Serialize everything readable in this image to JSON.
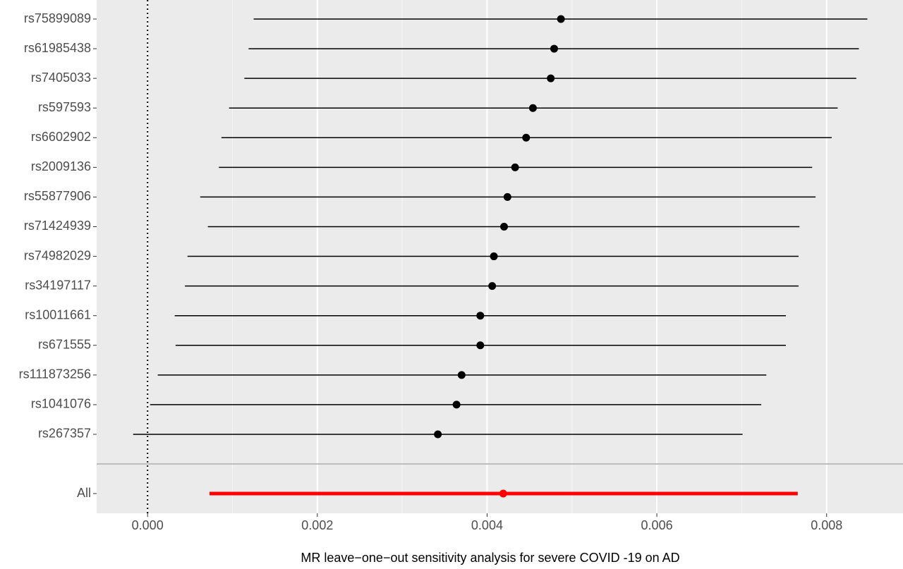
{
  "chart_data": {
    "type": "forest",
    "x_label": "MR leave−one−out sensitivity analysis for severe COVID -19 on AD",
    "categories": [
      "rs75899089",
      "rs61985438",
      "rs7405033",
      "rs597593",
      "rs6602902",
      "rs2009136",
      "rs55877906",
      "rs71424939",
      "rs74982029",
      "rs34197117",
      "rs10011661",
      "rs671555",
      "rs111873256",
      "rs1041076",
      "rs267357"
    ],
    "values": [
      0.00487,
      0.00479,
      0.00475,
      0.00454,
      0.00446,
      0.00433,
      0.00424,
      0.0042,
      0.00408,
      0.00406,
      0.00392,
      0.00392,
      0.0037,
      0.00364,
      0.00342
    ],
    "lower": [
      0.00125,
      0.00119,
      0.00114,
      0.00096,
      0.00087,
      0.00084,
      0.00062,
      0.00071,
      0.00047,
      0.00044,
      0.00032,
      0.00033,
      0.00012,
      3e-05,
      -0.00017
    ],
    "upper": [
      0.00848,
      0.00838,
      0.00835,
      0.00813,
      0.00806,
      0.00783,
      0.00787,
      0.00768,
      0.00767,
      0.00767,
      0.00752,
      0.00752,
      0.00729,
      0.00723,
      0.00701
    ],
    "color": "#000000",
    "summary": {
      "label": "All",
      "value": 0.00419,
      "lower": 0.00073,
      "upper": 0.00766,
      "color": "#ff0000"
    },
    "reference_line": 0,
    "xlim": [
      -0.0006,
      0.0089
    ],
    "xticks": [
      {
        "value": 0,
        "label": "0.000"
      },
      {
        "value": 0.002,
        "label": "0.002"
      },
      {
        "value": 0.004,
        "label": "0.004"
      },
      {
        "value": 0.006,
        "label": "0.006"
      },
      {
        "value": 0.008,
        "label": "0.008"
      }
    ],
    "minor_xticks": [
      0.001,
      0.003,
      0.005,
      0.007
    ],
    "grid": true
  }
}
